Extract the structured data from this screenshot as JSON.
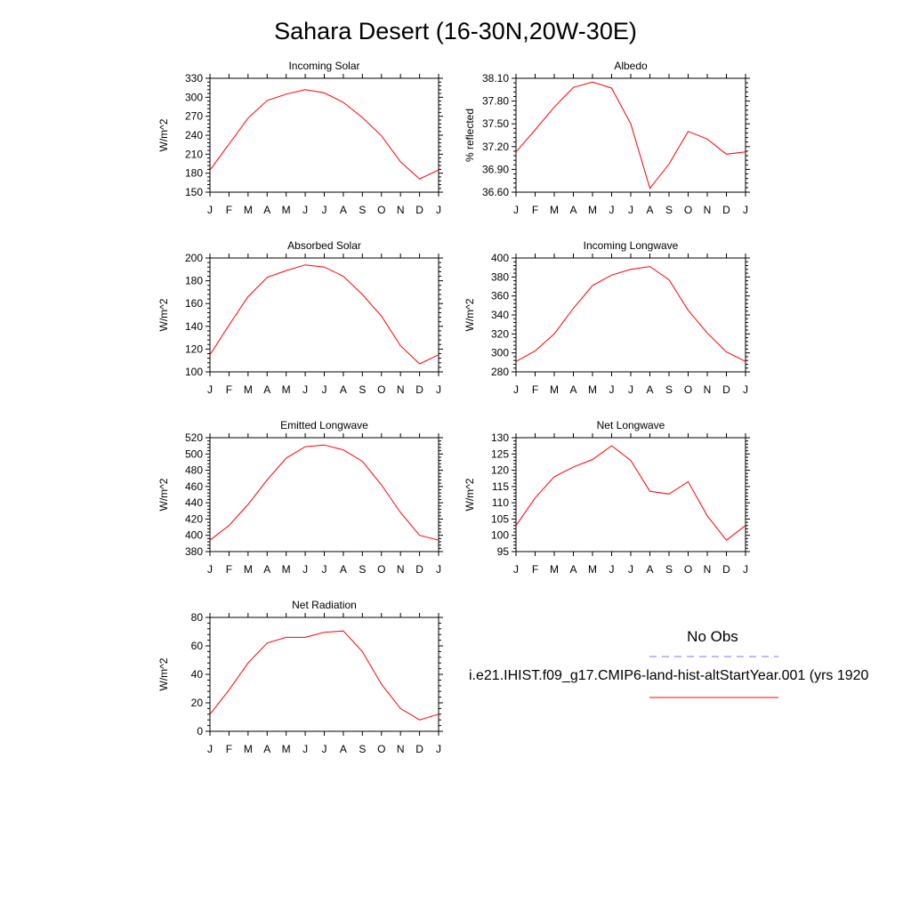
{
  "title": "Sahara Desert (16-30N,20W-30E)",
  "months": [
    "J",
    "F",
    "M",
    "A",
    "M",
    "J",
    "J",
    "A",
    "S",
    "O",
    "N",
    "D",
    "J"
  ],
  "colors": {
    "model_line": "#ff0000",
    "obs_line": "#7777ff"
  },
  "legend": {
    "obs_label": "No Obs",
    "model_label": "i.e21.IHIST.f09_g17.CMIP6-land-hist-altStartYear.001 (yrs 1920"
  },
  "chart_data": [
    {
      "type": "line",
      "title": "Incoming Solar",
      "ylabel": "W/m^2",
      "ylim": [
        150,
        330
      ],
      "yticks": [
        150,
        180,
        210,
        240,
        270,
        300,
        330
      ],
      "ytick_labels": [
        "150",
        "180",
        "210",
        "240",
        "270",
        "300",
        "330"
      ],
      "values": [
        185,
        226,
        267,
        295,
        305,
        312,
        307,
        292,
        268,
        239,
        198,
        171,
        185
      ]
    },
    {
      "type": "line",
      "title": "Albedo",
      "ylabel": "% reflected",
      "ylim": [
        36.6,
        38.1
      ],
      "yticks": [
        36.6,
        36.9,
        37.2,
        37.5,
        37.8,
        38.1
      ],
      "ytick_labels": [
        "36.60",
        "36.90",
        "37.20",
        "37.50",
        "37.80",
        "38.10"
      ],
      "values": [
        37.13,
        37.42,
        37.72,
        37.98,
        38.05,
        37.97,
        37.5,
        36.65,
        36.97,
        37.4,
        37.3,
        37.1,
        37.13
      ]
    },
    {
      "type": "line",
      "title": "Absorbed Solar",
      "ylabel": "W/m^2",
      "ylim": [
        100,
        200
      ],
      "yticks": [
        100,
        120,
        140,
        160,
        180,
        200
      ],
      "ytick_labels": [
        "100",
        "120",
        "140",
        "160",
        "180",
        "200"
      ],
      "values": [
        115,
        141,
        166,
        183,
        189,
        194,
        192,
        184,
        168,
        149,
        123,
        107,
        115
      ]
    },
    {
      "type": "line",
      "title": "Incoming Longwave",
      "ylabel": "W/m^2",
      "ylim": [
        280,
        400
      ],
      "yticks": [
        280,
        300,
        320,
        340,
        360,
        380,
        400
      ],
      "ytick_labels": [
        "280",
        "300",
        "320",
        "340",
        "360",
        "380",
        "400"
      ],
      "values": [
        291,
        302,
        320,
        347,
        371,
        382,
        388,
        391,
        377,
        345,
        321,
        301,
        291
      ]
    },
    {
      "type": "line",
      "title": "Emitted Longwave",
      "ylabel": "W/m^2",
      "ylim": [
        380,
        520
      ],
      "yticks": [
        380,
        400,
        420,
        440,
        460,
        480,
        500,
        520
      ],
      "ytick_labels": [
        "380",
        "400",
        "420",
        "440",
        "460",
        "480",
        "500",
        "520"
      ],
      "values": [
        394,
        412,
        438,
        468,
        495,
        509,
        511,
        505,
        491,
        462,
        428,
        400,
        394
      ]
    },
    {
      "type": "line",
      "title": "Net Longwave",
      "ylabel": "W/m^2",
      "ylim": [
        95,
        130
      ],
      "yticks": [
        95,
        100,
        105,
        110,
        115,
        120,
        125,
        130
      ],
      "ytick_labels": [
        "95",
        "100",
        "105",
        "110",
        "115",
        "120",
        "125",
        "130"
      ],
      "values": [
        103,
        111.5,
        118,
        121,
        123.3,
        127.5,
        123,
        113.5,
        112.7,
        116.5,
        106,
        98.5,
        103
      ]
    },
    {
      "type": "line",
      "title": "Net Radiation",
      "ylabel": "W/m^2",
      "ylim": [
        0,
        80
      ],
      "yticks": [
        0,
        20,
        40,
        60,
        80
      ],
      "ytick_labels": [
        "0",
        "20",
        "40",
        "60",
        "80"
      ],
      "values": [
        12,
        29,
        48,
        62,
        66,
        66,
        69.5,
        70.5,
        56,
        33,
        16,
        8,
        12
      ]
    }
  ]
}
